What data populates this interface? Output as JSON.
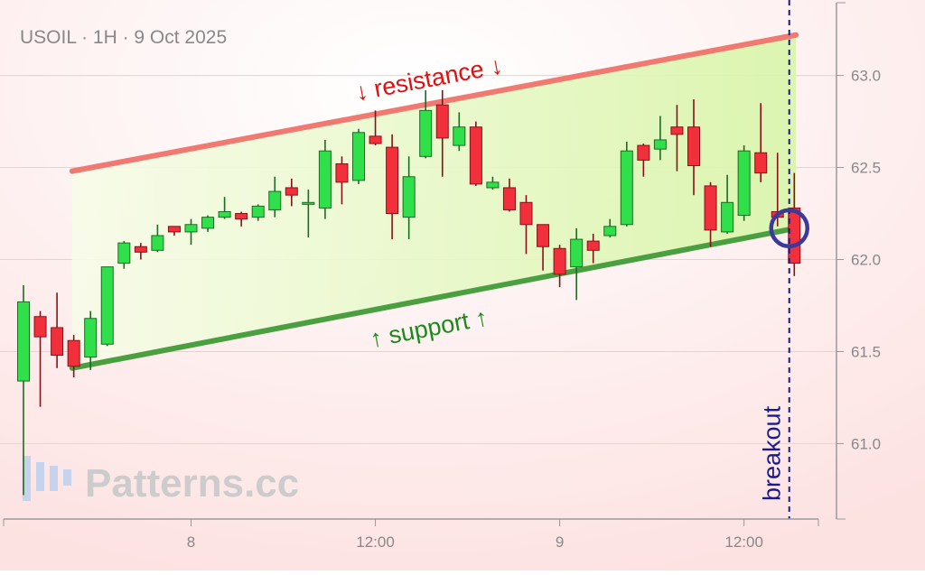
{
  "chart_data": {
    "type": "candlestick",
    "title": "USOIL · 1H · 9 Oct 2025",
    "watermark": "Patterns.cc",
    "categories": [
      null,
      null,
      null,
      null,
      null,
      null,
      null,
      null,
      null,
      null,
      "8",
      null,
      null,
      null,
      null,
      null,
      null,
      null,
      null,
      null,
      null,
      "12:00",
      null,
      null,
      null,
      null,
      null,
      null,
      null,
      null,
      null,
      null,
      "9",
      null,
      null,
      null,
      null,
      null,
      null,
      null,
      null,
      null,
      null,
      "12:00",
      null,
      null,
      null
    ],
    "open": [
      61.34,
      61.69,
      61.63,
      61.56,
      61.47,
      61.54,
      61.98,
      62.07,
      62.05,
      62.18,
      62.15,
      62.17,
      62.23,
      62.25,
      62.23,
      62.27,
      62.39,
      62.3,
      62.28,
      62.52,
      62.43,
      62.67,
      62.61,
      62.23,
      62.56,
      62.84,
      62.62,
      62.72,
      62.39,
      62.39,
      62.31,
      62.19,
      62.06,
      61.96,
      62.1,
      62.13,
      62.19,
      62.62,
      62.6,
      62.72,
      62.72,
      62.4,
      62.15,
      62.24,
      62.58,
      62.26,
      62.28
    ],
    "high": [
      61.86,
      61.72,
      61.82,
      61.59,
      61.72,
      61.96,
      62.1,
      62.09,
      62.19,
      62.18,
      62.22,
      62.24,
      62.34,
      62.26,
      62.3,
      62.45,
      62.44,
      62.38,
      62.65,
      62.56,
      62.71,
      62.81,
      62.68,
      62.56,
      62.92,
      62.92,
      62.8,
      62.75,
      62.45,
      62.44,
      62.35,
      62.19,
      62.08,
      62.17,
      62.14,
      62.22,
      62.64,
      62.63,
      62.78,
      62.84,
      62.87,
      62.42,
      62.46,
      62.62,
      62.85,
      62.58,
      62.47
    ],
    "low": [
      60.72,
      61.2,
      61.41,
      61.36,
      61.4,
      61.53,
      61.95,
      62.0,
      62.04,
      62.13,
      62.08,
      62.15,
      62.22,
      62.18,
      62.21,
      62.23,
      62.29,
      62.12,
      62.22,
      62.3,
      62.41,
      62.62,
      62.11,
      62.11,
      62.55,
      62.45,
      62.59,
      62.4,
      62.38,
      62.26,
      62.03,
      61.94,
      61.85,
      61.78,
      61.98,
      62.12,
      62.18,
      62.45,
      62.54,
      62.48,
      62.35,
      62.07,
      62.14,
      62.21,
      62.42,
      62.18,
      61.91
    ],
    "close": [
      61.77,
      61.58,
      61.48,
      61.42,
      61.68,
      61.96,
      62.09,
      62.04,
      62.13,
      62.15,
      62.19,
      62.23,
      62.26,
      62.22,
      62.29,
      62.37,
      62.35,
      62.31,
      62.59,
      62.42,
      62.69,
      62.63,
      62.25,
      62.45,
      62.81,
      62.66,
      62.72,
      62.41,
      62.42,
      62.27,
      62.19,
      62.07,
      61.92,
      62.11,
      62.05,
      62.18,
      62.59,
      62.54,
      62.65,
      62.68,
      62.51,
      62.16,
      62.31,
      62.59,
      62.47,
      62.23,
      61.98
    ],
    "up_color": "#2fe04b",
    "down_color": "#f2303c",
    "ylim": [
      60.59,
      63.41
    ],
    "yticks": [
      {
        "value": 61.0,
        "label": "61.0"
      },
      {
        "value": 61.5,
        "label": "61.5"
      },
      {
        "value": 62.0,
        "label": "62.0"
      },
      {
        "value": 62.5,
        "label": "62.5"
      },
      {
        "value": 63.0,
        "label": "63.0"
      }
    ],
    "grid": true,
    "resistance": {
      "label": "↓ resistance ↓",
      "color": "#f07a72",
      "x": [
        2.9,
        46.1
      ],
      "values": [
        62.48,
        63.22
      ]
    },
    "support": {
      "label": "↑ support ↑",
      "color": "#4aa040",
      "x": [
        2.9,
        46.1
      ],
      "values": [
        61.41,
        62.17
      ]
    },
    "breakout": {
      "label": "breakout",
      "color": "#1a1a8c",
      "x": 45.7,
      "value": 62.17
    }
  }
}
